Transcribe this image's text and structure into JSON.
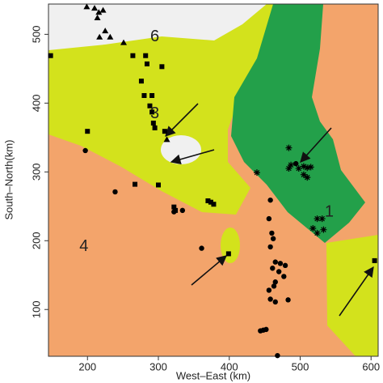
{
  "chart_data": {
    "type": "scatter",
    "xlabel": "West–East (km)",
    "ylabel": "South–North(km)",
    "xlim": [
      145,
      610
    ],
    "ylim": [
      32,
      544
    ],
    "xticks": [
      200,
      300,
      400,
      500,
      600
    ],
    "yticks": [
      100,
      200,
      300,
      400,
      500
    ],
    "annotations": [
      {
        "text": "6",
        "x": 295,
        "y": 496
      },
      {
        "text": "3",
        "x": 295,
        "y": 384
      },
      {
        "text": "4",
        "x": 195,
        "y": 191
      },
      {
        "text": "1",
        "x": 541,
        "y": 241
      }
    ],
    "series": [
      {
        "marker": "triangle",
        "color": "#000000",
        "x": [
          199,
          210,
          216,
          222,
          214,
          225,
          217,
          232,
          251,
          312
        ],
        "y": [
          540,
          538,
          532,
          535,
          524,
          505,
          496,
          496,
          488,
          347
        ]
      },
      {
        "marker": "square",
        "color": "#000000",
        "x": [
          148,
          264,
          282,
          284,
          305,
          276,
          280,
          291,
          288,
          291,
          293,
          295,
          309,
          200,
          300,
          322,
          324,
          370,
          374,
          378,
          399,
          605,
          267
        ],
        "y": [
          469,
          469,
          469,
          457,
          453,
          432,
          411,
          411,
          396,
          387,
          371,
          364,
          359,
          359,
          281,
          249,
          244,
          258,
          256,
          253,
          181,
          171,
          282
        ]
      },
      {
        "marker": "circle",
        "color": "#000000",
        "x": [
          197,
          239,
          322,
          334,
          361,
          458,
          456,
          460,
          462,
          458,
          465,
          472,
          479,
          461,
          470,
          477,
          465,
          456,
          463,
          458,
          465,
          483,
          452,
          448,
          444,
          468,
          494
        ],
        "y": [
          331,
          271,
          242,
          244,
          189,
          259,
          232,
          211,
          203,
          191,
          169,
          167,
          164,
          160,
          155,
          148,
          140,
          128,
          134,
          115,
          111,
          114,
          71,
          70,
          69,
          33,
          312
        ]
      },
      {
        "marker": "star",
        "color": "#000000",
        "x": [
          484,
          487,
          484,
          498,
          505,
          510,
          515,
          505,
          510,
          439,
          524,
          531,
          518,
          524,
          533
        ],
        "y": [
          335,
          310,
          305,
          305,
          308,
          306,
          307,
          296,
          292,
          299,
          232,
          232,
          218,
          211,
          216
        ]
      }
    ]
  }
}
